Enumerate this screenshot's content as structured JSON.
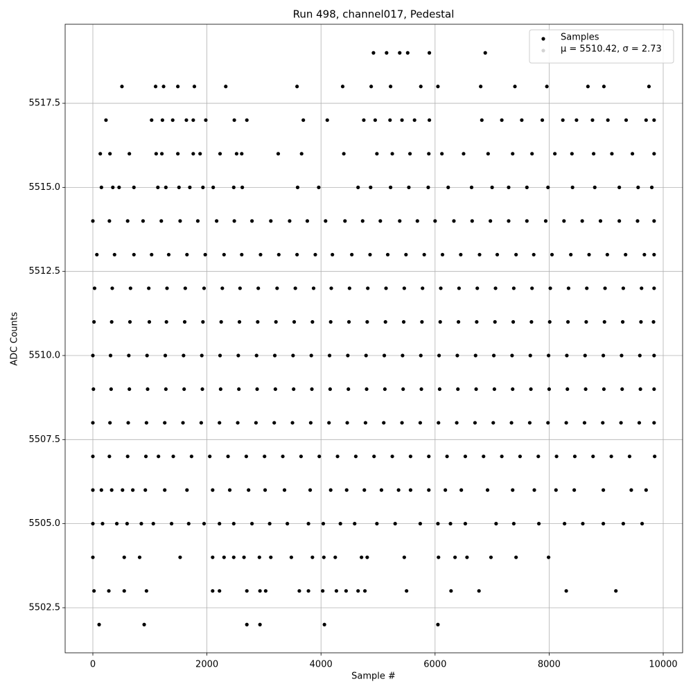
{
  "chart_data": {
    "type": "scatter",
    "title": "Run 498, channel017, Pedestal",
    "x_label": "Sample #",
    "y_label": "ADC Counts",
    "xlim": [
      -486,
      10340
    ],
    "ylim": [
      5501.16,
      5519.85
    ],
    "xticks": [
      0,
      2000,
      4000,
      6000,
      8000,
      10000
    ],
    "yticks": [
      5502.5,
      {
        "value": 5505,
        "label": "5505.0"
      },
      5507.5,
      {
        "value": 5510,
        "label": "5510.0"
      },
      5512.5,
      {
        "value": 5515,
        "label": "5515.0"
      },
      5517.5
    ],
    "grid": true,
    "legend": "upper right",
    "series": [
      {
        "name": "Samples",
        "color": "#000000",
        "x": [
          4920,
          5150,
          5380,
          5520,
          5900,
          6880,
          510,
          1100,
          1240,
          1490,
          1780,
          2330,
          3580,
          4380,
          4880,
          5220,
          5750,
          6050,
          6800,
          7400,
          7960,
          8680,
          8960,
          9750,
          230,
          1030,
          1220,
          1400,
          1640,
          1760,
          1980,
          2480,
          2700,
          3690,
          4110,
          4750,
          4950,
          5210,
          5420,
          5640,
          5900,
          6820,
          7170,
          7520,
          7880,
          8240,
          8480,
          8760,
          9030,
          9350,
          9700,
          9840,
          130,
          300,
          640,
          1110,
          1210,
          1490,
          1760,
          1880,
          2230,
          2520,
          2610,
          3250,
          3660,
          4400,
          4980,
          5250,
          5560,
          5890,
          6120,
          6500,
          6930,
          7360,
          7700,
          8100,
          8400,
          8780,
          9100,
          9460,
          9840,
          150,
          350,
          460,
          720,
          1140,
          1280,
          1510,
          1700,
          1930,
          2110,
          2470,
          2620,
          3590,
          3960,
          4650,
          4870,
          5220,
          5540,
          5880,
          6230,
          6640,
          7000,
          7290,
          7610,
          7980,
          8410,
          8800,
          9230,
          9560,
          9800,
          0,
          290,
          610,
          880,
          1200,
          1530,
          1840,
          2170,
          2480,
          2790,
          3120,
          3450,
          3760,
          4080,
          4420,
          4730,
          5040,
          5380,
          5690,
          6000,
          6330,
          6650,
          6970,
          7290,
          7610,
          7940,
          8260,
          8580,
          8900,
          9230,
          9550,
          9840,
          70,
          380,
          720,
          1030,
          1330,
          1650,
          1970,
          2300,
          2610,
          2940,
          3260,
          3580,
          3900,
          4200,
          4540,
          4860,
          5170,
          5490,
          5810,
          6130,
          6450,
          6780,
          7090,
          7420,
          7730,
          8050,
          8380,
          8700,
          9020,
          9340,
          9670,
          9840,
          30,
          340,
          660,
          980,
          1300,
          1620,
          1950,
          2270,
          2580,
          2900,
          3230,
          3550,
          3870,
          4180,
          4500,
          4820,
          5140,
          5460,
          5780,
          6100,
          6420,
          6740,
          7060,
          7380,
          7700,
          8020,
          8340,
          8660,
          8980,
          9300,
          9620,
          9840,
          20,
          330,
          650,
          990,
          1290,
          1610,
          1930,
          2250,
          2570,
          2890,
          3210,
          3530,
          3850,
          4170,
          4490,
          4810,
          5130,
          5450,
          5770,
          6090,
          6410,
          6730,
          7050,
          7370,
          7690,
          8010,
          8330,
          8650,
          8970,
          9290,
          9610,
          9830,
          0,
          310,
          630,
          950,
          1270,
          1590,
          1910,
          2230,
          2550,
          2870,
          3190,
          3510,
          3830,
          4150,
          4470,
          4790,
          5110,
          5430,
          5750,
          6070,
          6390,
          6710,
          7030,
          7350,
          7670,
          7990,
          8310,
          8630,
          8950,
          9270,
          9590,
          9840,
          10,
          320,
          640,
          960,
          1280,
          1600,
          1920,
          2240,
          2560,
          2880,
          3200,
          3520,
          3840,
          4160,
          4480,
          4800,
          5120,
          5440,
          5760,
          6080,
          6400,
          6720,
          7040,
          7360,
          7680,
          8000,
          8320,
          8640,
          8960,
          9280,
          9600,
          9840,
          0,
          300,
          620,
          940,
          1260,
          1580,
          1900,
          2220,
          2540,
          2860,
          3180,
          3500,
          3820,
          4140,
          4460,
          4780,
          5100,
          5420,
          5740,
          6060,
          6380,
          6700,
          7020,
          7340,
          7660,
          7980,
          8300,
          8620,
          8940,
          9260,
          9580,
          9840,
          0,
          290,
          610,
          930,
          1150,
          1410,
          1730,
          2050,
          2370,
          2690,
          3010,
          3330,
          3650,
          3970,
          4290,
          4610,
          4930,
          5250,
          5570,
          5890,
          6210,
          6530,
          6850,
          7170,
          7490,
          7810,
          8130,
          8450,
          8770,
          9090,
          9410,
          9850,
          0,
          150,
          330,
          520,
          700,
          920,
          1260,
          1650,
          2100,
          2400,
          2730,
          3020,
          3360,
          3810,
          4170,
          4450,
          4760,
          5060,
          5360,
          5570,
          5890,
          6180,
          6460,
          6920,
          7360,
          7740,
          8120,
          8440,
          8950,
          9440,
          9700,
          0,
          170,
          420,
          600,
          850,
          1060,
          1380,
          1680,
          1950,
          2220,
          2470,
          2790,
          3100,
          3410,
          3780,
          4040,
          4340,
          4590,
          4980,
          5300,
          5740,
          6050,
          6270,
          6530,
          7070,
          7380,
          7820,
          8270,
          8590,
          8950,
          9300,
          9630,
          0,
          550,
          820,
          1530,
          2100,
          2300,
          2470,
          2650,
          2920,
          3120,
          3480,
          3850,
          4050,
          4250,
          4710,
          4810,
          5460,
          6060,
          6350,
          6560,
          6980,
          7420,
          7990,
          20,
          280,
          550,
          940,
          2100,
          2220,
          2700,
          2930,
          3030,
          3620,
          3780,
          4030,
          4270,
          4440,
          4650,
          4770,
          5500,
          6280,
          6770,
          8300,
          9170,
          110,
          900,
          2700,
          2930,
          4060,
          6050
        ],
        "values": [
          5519,
          5519,
          5519,
          5519,
          5519,
          5519,
          5518,
          5518,
          5518,
          5518,
          5518,
          5518,
          5518,
          5518,
          5518,
          5518,
          5518,
          5518,
          5518,
          5518,
          5518,
          5518,
          5518,
          5518,
          5517,
          5517,
          5517,
          5517,
          5517,
          5517,
          5517,
          5517,
          5517,
          5517,
          5517,
          5517,
          5517,
          5517,
          5517,
          5517,
          5517,
          5517,
          5517,
          5517,
          5517,
          5517,
          5517,
          5517,
          5517,
          5517,
          5517,
          5517,
          5516,
          5516,
          5516,
          5516,
          5516,
          5516,
          5516,
          5516,
          5516,
          5516,
          5516,
          5516,
          5516,
          5516,
          5516,
          5516,
          5516,
          5516,
          5516,
          5516,
          5516,
          5516,
          5516,
          5516,
          5516,
          5516,
          5516,
          5516,
          5516,
          5515,
          5515,
          5515,
          5515,
          5515,
          5515,
          5515,
          5515,
          5515,
          5515,
          5515,
          5515,
          5515,
          5515,
          5515,
          5515,
          5515,
          5515,
          5515,
          5515,
          5515,
          5515,
          5515,
          5515,
          5515,
          5515,
          5515,
          5515,
          5515,
          5515,
          5514,
          5514,
          5514,
          5514,
          5514,
          5514,
          5514,
          5514,
          5514,
          5514,
          5514,
          5514,
          5514,
          5514,
          5514,
          5514,
          5514,
          5514,
          5514,
          5514,
          5514,
          5514,
          5514,
          5514,
          5514,
          5514,
          5514,
          5514,
          5514,
          5514,
          5514,
          5514,
          5513,
          5513,
          5513,
          5513,
          5513,
          5513,
          5513,
          5513,
          5513,
          5513,
          5513,
          5513,
          5513,
          5513,
          5513,
          5513,
          5513,
          5513,
          5513,
          5513,
          5513,
          5513,
          5513,
          5513,
          5513,
          5513,
          5513,
          5513,
          5513,
          5513,
          5513,
          5513,
          5512,
          5512,
          5512,
          5512,
          5512,
          5512,
          5512,
          5512,
          5512,
          5512,
          5512,
          5512,
          5512,
          5512,
          5512,
          5512,
          5512,
          5512,
          5512,
          5512,
          5512,
          5512,
          5512,
          5512,
          5512,
          5512,
          5512,
          5512,
          5512,
          5512,
          5512,
          5512,
          5511,
          5511,
          5511,
          5511,
          5511,
          5511,
          5511,
          5511,
          5511,
          5511,
          5511,
          5511,
          5511,
          5511,
          5511,
          5511,
          5511,
          5511,
          5511,
          5511,
          5511,
          5511,
          5511,
          5511,
          5511,
          5511,
          5511,
          5511,
          5511,
          5511,
          5511,
          5511,
          5510,
          5510,
          5510,
          5510,
          5510,
          5510,
          5510,
          5510,
          5510,
          5510,
          5510,
          5510,
          5510,
          5510,
          5510,
          5510,
          5510,
          5510,
          5510,
          5510,
          5510,
          5510,
          5510,
          5510,
          5510,
          5510,
          5510,
          5510,
          5510,
          5510,
          5510,
          5510,
          5509,
          5509,
          5509,
          5509,
          5509,
          5509,
          5509,
          5509,
          5509,
          5509,
          5509,
          5509,
          5509,
          5509,
          5509,
          5509,
          5509,
          5509,
          5509,
          5509,
          5509,
          5509,
          5509,
          5509,
          5509,
          5509,
          5509,
          5509,
          5509,
          5509,
          5509,
          5509,
          5508,
          5508,
          5508,
          5508,
          5508,
          5508,
          5508,
          5508,
          5508,
          5508,
          5508,
          5508,
          5508,
          5508,
          5508,
          5508,
          5508,
          5508,
          5508,
          5508,
          5508,
          5508,
          5508,
          5508,
          5508,
          5508,
          5508,
          5508,
          5508,
          5508,
          5508,
          5508,
          5507,
          5507,
          5507,
          5507,
          5507,
          5507,
          5507,
          5507,
          5507,
          5507,
          5507,
          5507,
          5507,
          5507,
          5507,
          5507,
          5507,
          5507,
          5507,
          5507,
          5507,
          5507,
          5507,
          5507,
          5507,
          5507,
          5507,
          5507,
          5507,
          5507,
          5507,
          5507,
          5506,
          5506,
          5506,
          5506,
          5506,
          5506,
          5506,
          5506,
          5506,
          5506,
          5506,
          5506,
          5506,
          5506,
          5506,
          5506,
          5506,
          5506,
          5506,
          5506,
          5506,
          5506,
          5506,
          5506,
          5506,
          5506,
          5506,
          5506,
          5506,
          5506,
          5506,
          5505,
          5505,
          5505,
          5505,
          5505,
          5505,
          5505,
          5505,
          5505,
          5505,
          5505,
          5505,
          5505,
          5505,
          5505,
          5505,
          5505,
          5505,
          5505,
          5505,
          5505,
          5505,
          5505,
          5505,
          5505,
          5505,
          5505,
          5505,
          5505,
          5505,
          5505,
          5505,
          5504,
          5504,
          5504,
          5504,
          5504,
          5504,
          5504,
          5504,
          5504,
          5504,
          5504,
          5504,
          5504,
          5504,
          5504,
          5504,
          5504,
          5504,
          5504,
          5504,
          5504,
          5504,
          5504,
          5503,
          5503,
          5503,
          5503,
          5503,
          5503,
          5503,
          5503,
          5503,
          5503,
          5503,
          5503,
          5503,
          5503,
          5503,
          5503,
          5503,
          5503,
          5503,
          5503,
          5503,
          5502,
          5502,
          5502,
          5502,
          5502,
          5502
        ]
      },
      {
        "name": "μ = 5510.42, σ = 2.73",
        "color": "#d3d3d3",
        "x": [],
        "values": []
      }
    ]
  }
}
